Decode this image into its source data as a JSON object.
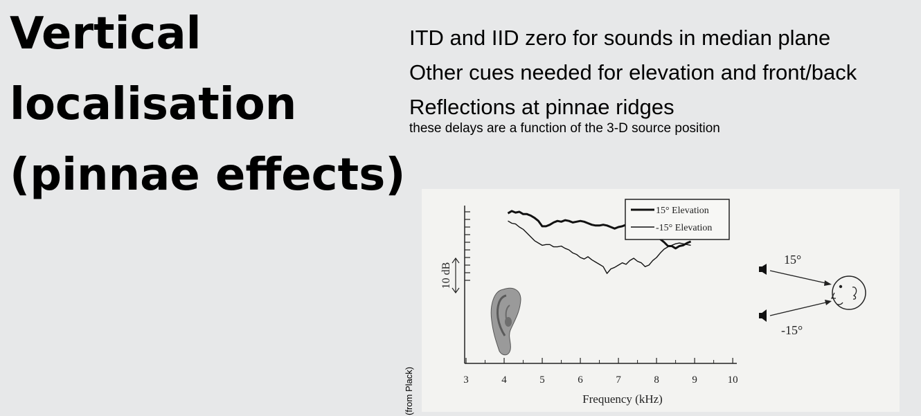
{
  "slide": {
    "title_lines": [
      "Vertical",
      "localisation",
      "(pinnae effects)"
    ],
    "bullets": [
      "ITD and IID zero for sounds in median plane",
      "Other cues needed for elevation and front/back",
      "Reflections at pinnae ridges"
    ],
    "subnote": "these delays are a function of the 3-D source position",
    "credit": "(from Plack)"
  },
  "figure": {
    "scale_label": "10 dB",
    "elevation_up_label": "15°",
    "elevation_down_label": "-15°",
    "icons": [
      "ear-image",
      "loudspeaker-icon",
      "head-icon"
    ]
  },
  "chart_data": {
    "type": "line",
    "xlabel": "Frequency (kHz)",
    "ylabel": "",
    "x_ticks": [
      3,
      4,
      5,
      6,
      7,
      8,
      9,
      10
    ],
    "xlim": [
      3,
      10
    ],
    "ylim_db": [
      0,
      60
    ],
    "legend_position": "top-right",
    "series": [
      {
        "name": "15° Elevation",
        "line": "thick",
        "x": [
          4.1,
          4.2,
          4.3,
          4.4,
          4.5,
          4.6,
          4.7,
          4.8,
          4.9,
          5.0,
          5.1,
          5.2,
          5.3,
          5.4,
          5.5,
          5.6,
          5.7,
          5.8,
          5.9,
          6.0,
          6.1,
          6.2,
          6.3,
          6.4,
          6.5,
          6.6,
          6.7,
          6.8,
          6.9,
          7.0,
          7.1,
          7.2,
          7.3,
          7.4,
          7.5,
          7.6,
          7.7,
          7.8,
          7.9,
          8.0,
          8.1,
          8.2,
          8.3,
          8.4,
          8.5,
          8.6,
          8.7,
          8.8,
          8.9
        ],
        "values": [
          48,
          51,
          49,
          50,
          47,
          47,
          45,
          42,
          38,
          31,
          31,
          33,
          36,
          38,
          37,
          39,
          38,
          36,
          37,
          38,
          37,
          35,
          33,
          32,
          32,
          33,
          32,
          30,
          28,
          30,
          31,
          33,
          34,
          33,
          31,
          29,
          27,
          24,
          22,
          19,
          14,
          10,
          5,
          5,
          2,
          5,
          6,
          9,
          11
        ]
      },
      {
        "name": "-15° Elevation",
        "line": "thin",
        "x": [
          4.1,
          4.2,
          4.3,
          4.4,
          4.5,
          4.6,
          4.7,
          4.8,
          4.9,
          5.0,
          5.1,
          5.2,
          5.3,
          5.4,
          5.5,
          5.6,
          5.7,
          5.8,
          5.9,
          6.0,
          6.1,
          6.2,
          6.3,
          6.4,
          6.5,
          6.6,
          6.7,
          6.8,
          6.9,
          7.0,
          7.1,
          7.2,
          7.3,
          7.4,
          7.5,
          7.6,
          7.7,
          7.8,
          7.9,
          8.0,
          8.1,
          8.2,
          8.3,
          8.4,
          8.5,
          8.6,
          8.7,
          8.8,
          8.9
        ],
        "values": [
          38,
          35,
          34,
          30,
          27,
          22,
          17,
          12,
          9,
          6,
          7,
          7,
          4,
          4,
          5,
          2,
          0,
          -4,
          -6,
          -10,
          -12,
          -9,
          -13,
          -16,
          -19,
          -22,
          -31,
          -25,
          -23,
          -20,
          -17,
          -19,
          -14,
          -11,
          -15,
          -17,
          -22,
          -20,
          -14,
          -10,
          -4,
          1,
          4,
          6,
          8,
          9,
          8,
          7,
          6
        ]
      }
    ]
  }
}
